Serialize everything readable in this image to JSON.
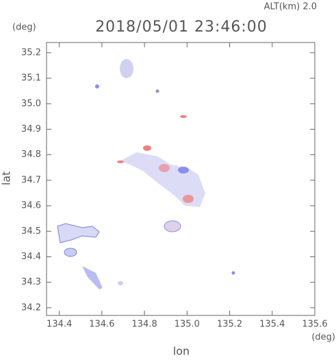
{
  "chart_data": {
    "type": "map",
    "title": "2018/05/01 23:46:00",
    "subtitle": "ALT(km) 2.0",
    "x_label": "lon",
    "x_unit": "(deg)",
    "y_label": "lat",
    "y_unit": "(deg)",
    "xlim": [
      134.34,
      135.6
    ],
    "xticks": [
      134.4,
      134.6,
      134.8,
      {
        "value": 135.0,
        "label": "135.0"
      },
      135.2,
      135.4,
      135.6
    ],
    "ylim": [
      34.17,
      35.24
    ],
    "yticks": [
      34.2,
      34.3,
      34.4,
      34.5,
      34.6,
      34.7,
      34.8,
      34.9,
      {
        "value": 35.0,
        "label": "35.0"
      },
      35.1,
      35.2
    ]
  }
}
